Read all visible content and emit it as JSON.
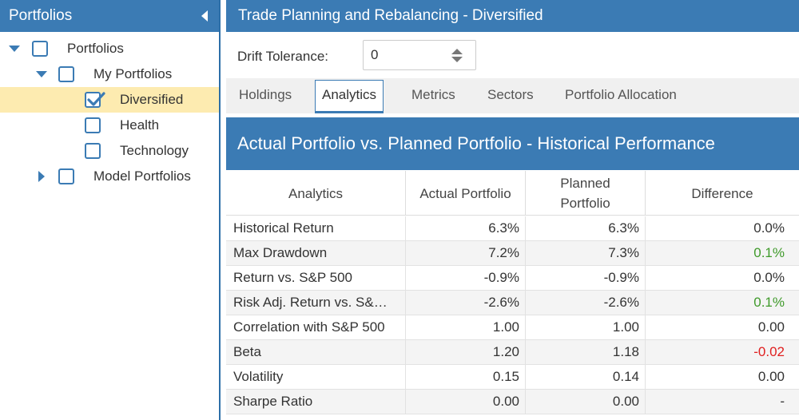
{
  "sidebar": {
    "title": "Portfolios",
    "tree": [
      {
        "label": "Portfolios",
        "expanded": true,
        "checked": false,
        "selected": false
      },
      {
        "label": "My Portfolios",
        "expanded": true,
        "checked": false,
        "selected": false
      },
      {
        "label": "Diversified",
        "checked": true,
        "selected": true
      },
      {
        "label": "Health",
        "checked": false,
        "selected": false
      },
      {
        "label": "Technology",
        "checked": false,
        "selected": false
      },
      {
        "label": "Model Portfolios",
        "expanded": false,
        "checked": false,
        "selected": false
      }
    ]
  },
  "header": {
    "title": "Trade Planning and Rebalancing - Diversified"
  },
  "drift": {
    "label": "Drift Tolerance:",
    "value": "0"
  },
  "tabs": [
    {
      "label": "Holdings",
      "active": false
    },
    {
      "label": "Analytics",
      "active": true
    },
    {
      "label": "Metrics",
      "active": false
    },
    {
      "label": "Sectors",
      "active": false
    },
    {
      "label": "Portfolio Allocation",
      "active": false
    }
  ],
  "section": {
    "title": "Actual Portfolio vs. Planned Portfolio - Historical Performance"
  },
  "grid": {
    "columns": [
      {
        "label": "Analytics"
      },
      {
        "label": "Actual Portfolio"
      },
      {
        "label_line1": "Planned",
        "label_line2": "Portfolio"
      },
      {
        "label": "Difference"
      }
    ],
    "rows": [
      {
        "name": "Historical Return",
        "actual": "6.3%",
        "planned": "6.3%",
        "diff": "0.0%",
        "diff_state": "neutral"
      },
      {
        "name": "Max Drawdown",
        "actual": "7.2%",
        "planned": "7.3%",
        "diff": "0.1%",
        "diff_state": "positive"
      },
      {
        "name": "Return vs. S&P 500",
        "actual": "-0.9%",
        "planned": "-0.9%",
        "diff": "0.0%",
        "diff_state": "neutral"
      },
      {
        "name": "Risk Adj. Return vs. S&…",
        "actual": "-2.6%",
        "planned": "-2.6%",
        "diff": "0.1%",
        "diff_state": "positive"
      },
      {
        "name": "Correlation with S&P 500",
        "actual": "1.00",
        "planned": "1.00",
        "diff": "0.00",
        "diff_state": "neutral"
      },
      {
        "name": "Beta",
        "actual": "1.20",
        "planned": "1.18",
        "diff": "-0.02",
        "diff_state": "negative"
      },
      {
        "name": "Volatility",
        "actual": "0.15",
        "planned": "0.14",
        "diff": "0.00",
        "diff_state": "neutral"
      },
      {
        "name": "Sharpe Ratio",
        "actual": "0.00",
        "planned": "0.00",
        "diff": "-",
        "diff_state": "neutral"
      }
    ]
  },
  "colors": {
    "accent": "#3b7bb4",
    "selected": "#fdebb0",
    "positive": "#3f9a2a",
    "negative": "#e02020"
  }
}
